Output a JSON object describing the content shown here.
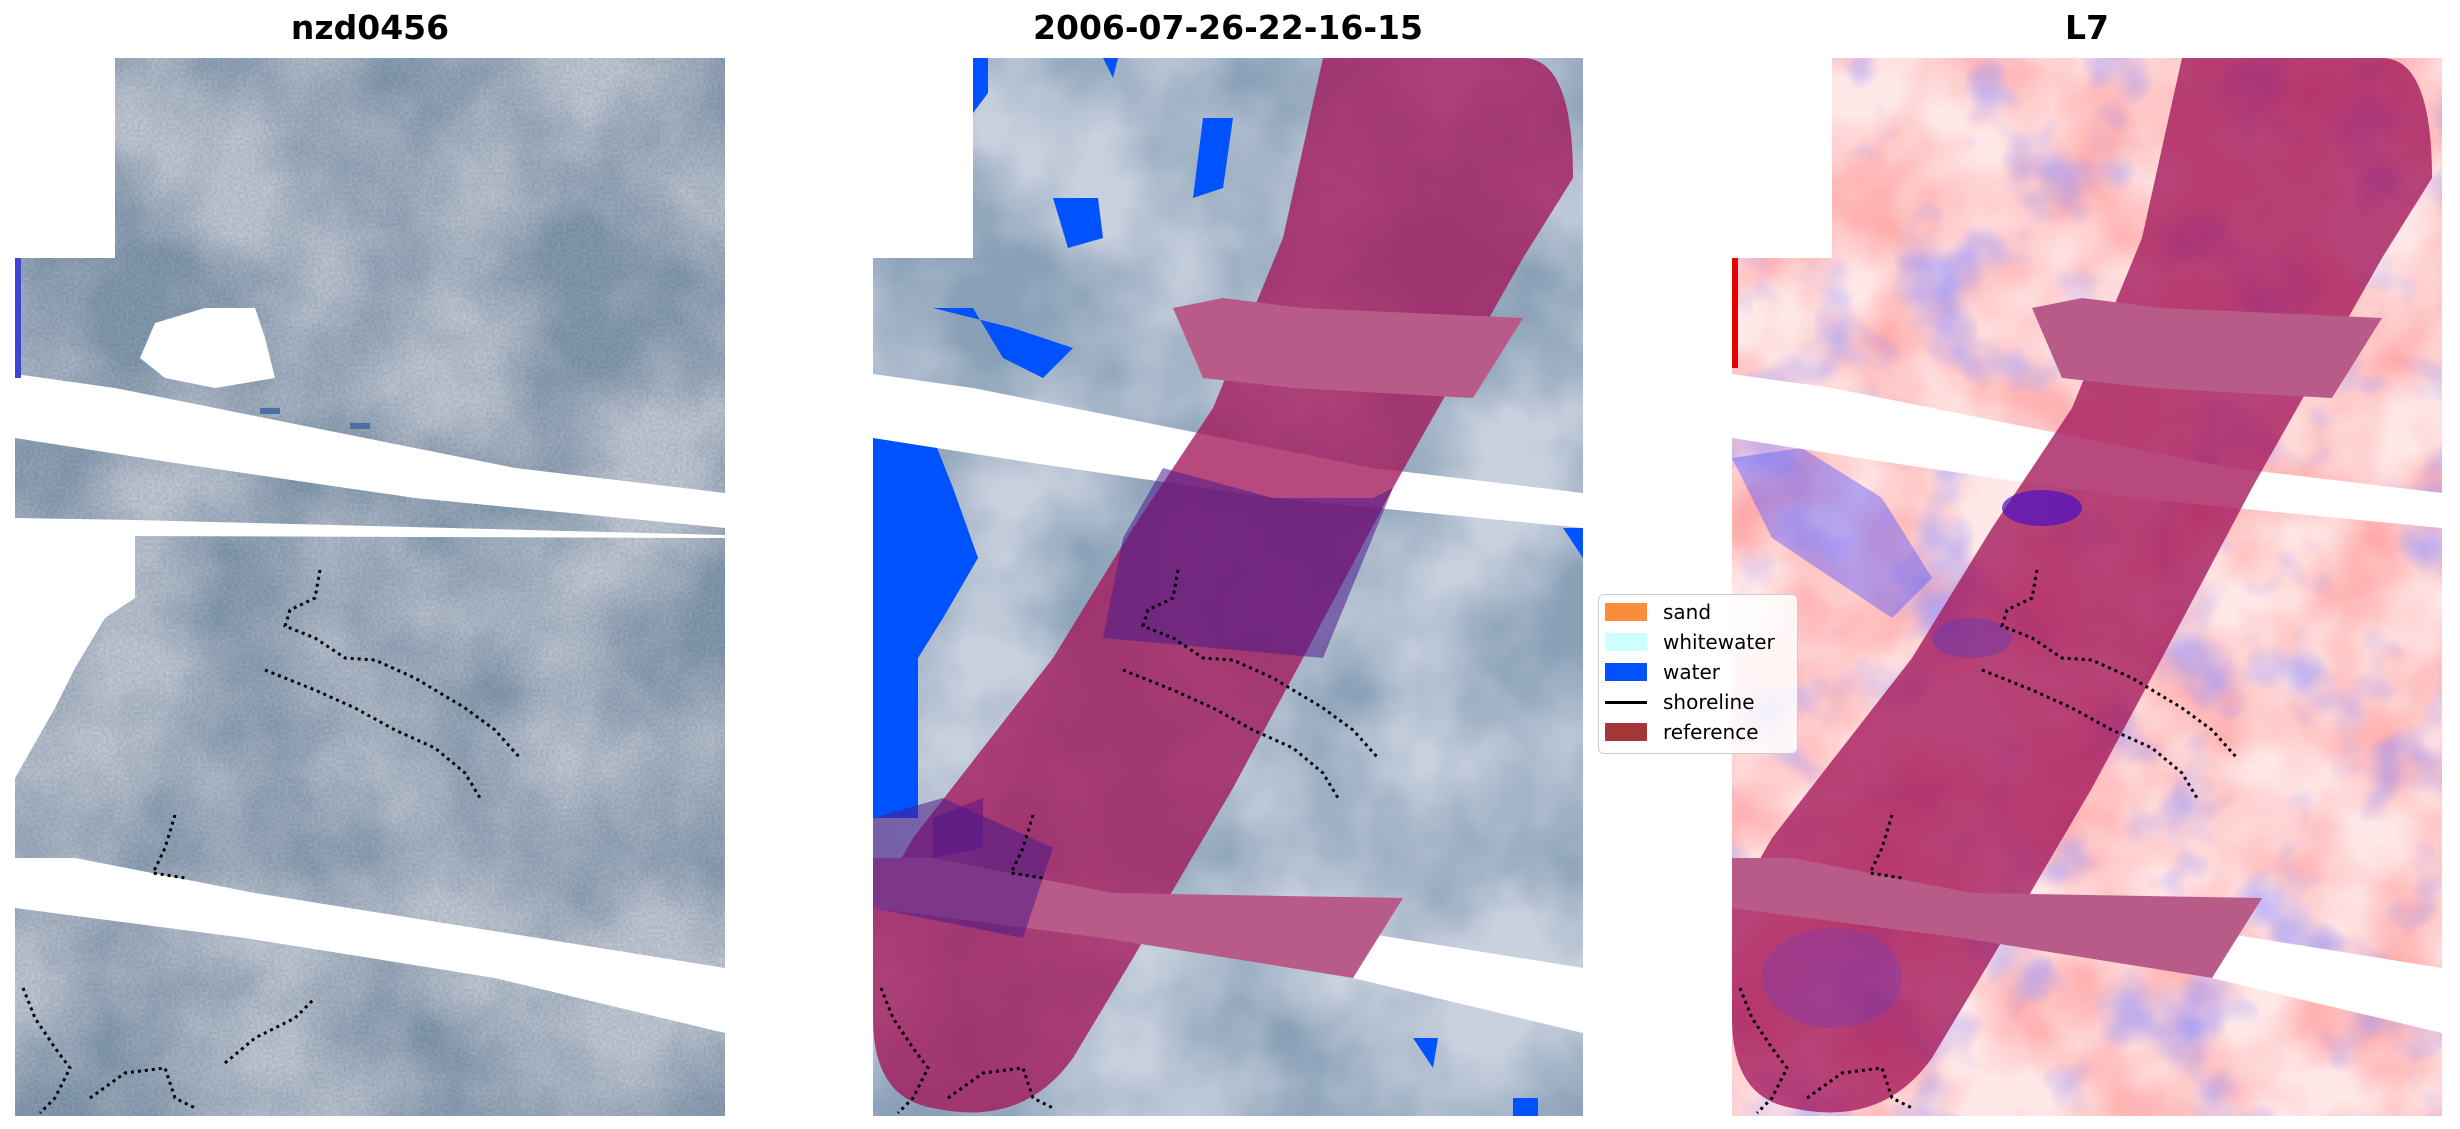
{
  "panels": [
    {
      "title": "nzd0456"
    },
    {
      "title": "2006-07-26-22-16-15"
    },
    {
      "title": "L7"
    }
  ],
  "legend": {
    "items": [
      {
        "label": "sand",
        "color": "#f98d3b"
      },
      {
        "label": "whitewater",
        "color": "#ccfffd"
      },
      {
        "label": "water",
        "color": "#0052ff"
      },
      {
        "label": "shoreline",
        "color": "#000000"
      },
      {
        "label": "reference",
        "color": "#a33636"
      }
    ]
  },
  "colors": {
    "rgb_dark": "#3f5875",
    "rgb_cloud": "#c9d1df",
    "overlay": "#a3165a",
    "water": "#0052ff",
    "diff_red": "#ff5a5a",
    "diff_blue": "#5050ff"
  }
}
